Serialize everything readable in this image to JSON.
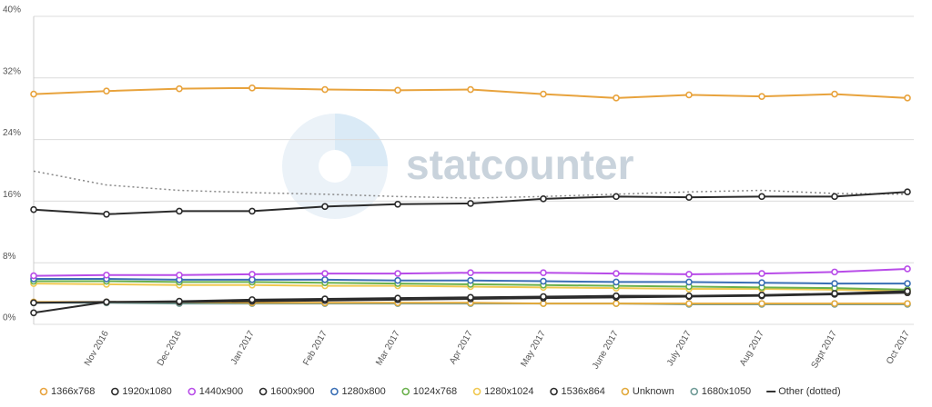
{
  "chart_data": {
    "type": "line",
    "watermark": "statcounter",
    "categories": [
      null,
      "Nov 2016",
      "Dec 2016",
      "Jan 2017",
      "Feb 2017",
      "Mar 2017",
      "Apr 2017",
      "May 2017",
      "June 2017",
      "July 2017",
      "Aug 2017",
      "Sept 2017",
      "Oct 2017"
    ],
    "ylim": [
      0,
      40
    ],
    "yticks": [
      {
        "value": 0,
        "label": "0%"
      },
      {
        "value": 8,
        "label": "8%"
      },
      {
        "value": 16,
        "label": "16%"
      },
      {
        "value": 24,
        "label": "24%"
      },
      {
        "value": 32,
        "label": "32%"
      },
      {
        "value": 40,
        "label": "40%"
      }
    ],
    "grid": true,
    "legend": "bottom",
    "series": [
      {
        "name": "1366x768",
        "color": "#e8a33d",
        "values": [
          29.9,
          30.3,
          30.6,
          30.7,
          30.5,
          30.4,
          30.5,
          29.9,
          29.4,
          29.8,
          29.6,
          29.9,
          29.4
        ]
      },
      {
        "name": "1920x1080",
        "color": "#2b2b2b",
        "values": [
          14.9,
          14.3,
          14.7,
          14.7,
          15.3,
          15.6,
          15.7,
          16.3,
          16.6,
          16.5,
          16.6,
          16.6,
          17.2
        ]
      },
      {
        "name": "1440x900",
        "color": "#b84ce8",
        "values": [
          6.3,
          6.4,
          6.4,
          6.5,
          6.6,
          6.6,
          6.7,
          6.7,
          6.6,
          6.5,
          6.6,
          6.8,
          7.2
        ]
      },
      {
        "name": "1600x900",
        "color": "#2b2b2b",
        "values": [
          1.5,
          2.9,
          3.0,
          3.2,
          3.3,
          3.4,
          3.5,
          3.6,
          3.7,
          3.7,
          3.8,
          4.0,
          4.3
        ]
      },
      {
        "name": "1280x800",
        "color": "#3a6fb5",
        "values": [
          5.9,
          5.9,
          5.8,
          5.8,
          5.8,
          5.7,
          5.7,
          5.6,
          5.5,
          5.5,
          5.4,
          5.3,
          5.3
        ]
      },
      {
        "name": "1024x768",
        "color": "#6ab04c",
        "values": [
          5.6,
          5.6,
          5.5,
          5.5,
          5.4,
          5.3,
          5.2,
          5.1,
          5.0,
          4.9,
          4.8,
          4.7,
          4.5
        ]
      },
      {
        "name": "1280x1024",
        "color": "#f0c850",
        "values": [
          5.3,
          5.2,
          5.1,
          5.1,
          5.0,
          5.0,
          4.9,
          4.8,
          4.7,
          4.6,
          4.6,
          4.5,
          4.3
        ]
      },
      {
        "name": "1536x864",
        "color": "#2b2b2b",
        "values": [
          2.8,
          2.9,
          2.9,
          3.0,
          3.1,
          3.2,
          3.3,
          3.4,
          3.5,
          3.6,
          3.7,
          3.9,
          4.1
        ]
      },
      {
        "name": "Unknown",
        "color": "#e2a93b",
        "values": [
          2.9,
          2.9,
          2.9,
          2.8,
          2.8,
          2.8,
          2.8,
          2.7,
          2.7,
          2.7,
          2.7,
          2.7,
          2.7
        ]
      },
      {
        "name": "1680x1050",
        "color": "#6e9a96",
        "values": [
          2.8,
          2.8,
          2.7,
          2.7,
          2.7,
          2.7,
          2.7,
          2.7,
          2.7,
          2.6,
          2.6,
          2.6,
          2.6
        ]
      },
      {
        "name": "Other (dotted)",
        "color": "#888888",
        "style": "dotted",
        "values": [
          19.9,
          18.1,
          17.4,
          17.1,
          16.9,
          16.6,
          16.4,
          16.6,
          16.9,
          17.2,
          17.4,
          17.0,
          16.9
        ]
      }
    ]
  }
}
